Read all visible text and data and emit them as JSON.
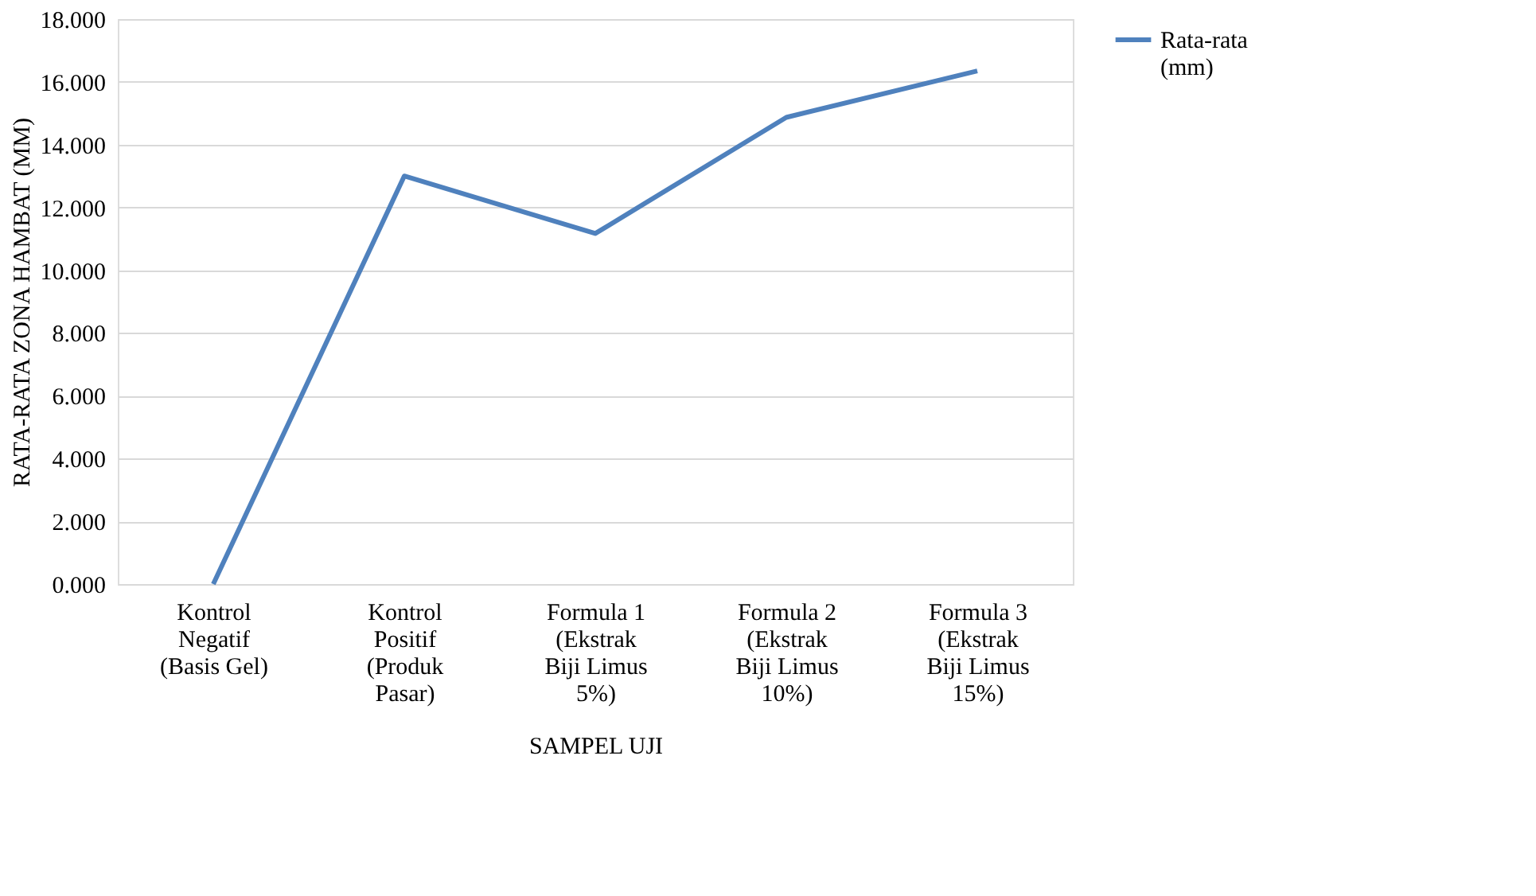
{
  "chart_data": {
    "type": "line",
    "xlabel": "SAMPEL UJI",
    "ylabel": "RATA-RATA ZONA HAMBAT (MM)",
    "categories": [
      "Kontrol Negatif (Basis Gel)",
      "Kontrol Positif (Produk Pasar)",
      "Formula 1 (Ekstrak Biji Limus 5%)",
      "Formula 2 (Ekstrak Biji Limus 10%)",
      "Formula 3 (Ekstrak Biji Limus 15%)"
    ],
    "series": [
      {
        "name": "Rata-rata (mm)",
        "color": "#4f81bd",
        "values": [
          0.0,
          13.0,
          11.17,
          14.87,
          16.35
        ]
      }
    ],
    "ylim": [
      0,
      18
    ],
    "yticks": [
      {
        "value": 0,
        "label": "0.000"
      },
      {
        "value": 2,
        "label": "2.000"
      },
      {
        "value": 4,
        "label": "4.000"
      },
      {
        "value": 6,
        "label": "6.000"
      },
      {
        "value": 8,
        "label": "8.000"
      },
      {
        "value": 10,
        "label": "10.000"
      },
      {
        "value": 12,
        "label": "12.000"
      },
      {
        "value": 14,
        "label": "14.000"
      },
      {
        "value": 16,
        "label": "16.000"
      },
      {
        "value": 18,
        "label": "18.000"
      }
    ],
    "grid": "y",
    "legend": "right",
    "marker": "none",
    "line_style": "solid"
  }
}
